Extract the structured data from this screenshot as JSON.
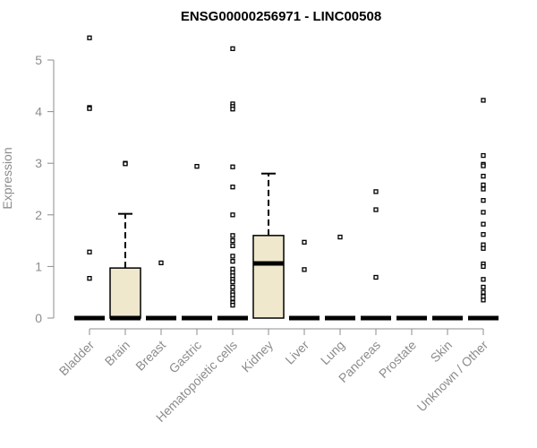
{
  "chart_data": {
    "type": "box",
    "title": "ENSG00000256971 - LINC00508",
    "xlabel": "",
    "ylabel": "Expression",
    "ylim": [
      0,
      5.5
    ],
    "yticks": [
      0,
      1,
      2,
      3,
      4,
      5
    ],
    "box_color": "#efe8cd",
    "categories": [
      "Bladder",
      "Brain",
      "Breast",
      "Gastric",
      "Hematopoietic cells",
      "Kidney",
      "Liver",
      "Lung",
      "Pancreas",
      "Prostate",
      "Skin",
      "Unknown / Other"
    ],
    "boxes": [
      {
        "name": "Bladder",
        "q1": 0,
        "median": 0,
        "q3": 0,
        "whisker_low": 0,
        "whisker_high": 0,
        "outliers": [
          5.43,
          4.08,
          4.06,
          1.28,
          0.77
        ]
      },
      {
        "name": "Brain",
        "q1": 0,
        "median": 0,
        "q3": 0.97,
        "whisker_low": 0,
        "whisker_high": 2.02,
        "outliers": [
          3.0,
          2.99
        ]
      },
      {
        "name": "Breast",
        "q1": 0,
        "median": 0,
        "q3": 0,
        "whisker_low": 0,
        "whisker_high": 0,
        "outliers": [
          1.07
        ]
      },
      {
        "name": "Gastric",
        "q1": 0,
        "median": 0,
        "q3": 0,
        "whisker_low": 0,
        "whisker_high": 0,
        "outliers": [
          2.94
        ]
      },
      {
        "name": "Hematopoietic cells",
        "q1": 0,
        "median": 0,
        "q3": 0,
        "whisker_low": 0,
        "whisker_high": 0,
        "outliers": [
          5.22,
          4.15,
          4.1,
          4.05,
          2.93,
          2.54,
          2.0,
          1.6,
          1.5,
          1.4,
          1.2,
          1.1,
          0.95,
          0.88,
          0.82,
          0.75,
          0.7,
          0.6,
          0.5,
          0.45,
          0.38,
          0.3,
          0.25
        ]
      },
      {
        "name": "Kidney",
        "q1": 0,
        "median": 1.06,
        "q3": 1.6,
        "whisker_low": 0,
        "whisker_high": 2.8,
        "outliers": []
      },
      {
        "name": "Liver",
        "q1": 0,
        "median": 0,
        "q3": 0,
        "whisker_low": 0,
        "whisker_high": 0,
        "outliers": [
          1.47,
          0.94
        ]
      },
      {
        "name": "Lung",
        "q1": 0,
        "median": 0,
        "q3": 0,
        "whisker_low": 0,
        "whisker_high": 0,
        "outliers": [
          1.57
        ]
      },
      {
        "name": "Pancreas",
        "q1": 0,
        "median": 0,
        "q3": 0,
        "whisker_low": 0,
        "whisker_high": 0,
        "outliers": [
          2.45,
          2.1,
          0.79
        ]
      },
      {
        "name": "Prostate",
        "q1": 0,
        "median": 0,
        "q3": 0,
        "whisker_low": 0,
        "whisker_high": 0,
        "outliers": []
      },
      {
        "name": "Skin",
        "q1": 0,
        "median": 0,
        "q3": 0,
        "whisker_low": 0,
        "whisker_high": 0,
        "outliers": []
      },
      {
        "name": "Unknown / Other",
        "q1": 0,
        "median": 0,
        "q3": 0,
        "whisker_low": 0,
        "whisker_high": 0,
        "outliers": [
          4.22,
          3.15,
          2.98,
          2.95,
          2.75,
          2.58,
          2.5,
          2.28,
          2.05,
          1.82,
          1.62,
          1.42,
          1.35,
          1.05,
          1.0,
          0.75,
          0.6,
          0.5,
          0.42,
          0.35
        ]
      }
    ]
  }
}
